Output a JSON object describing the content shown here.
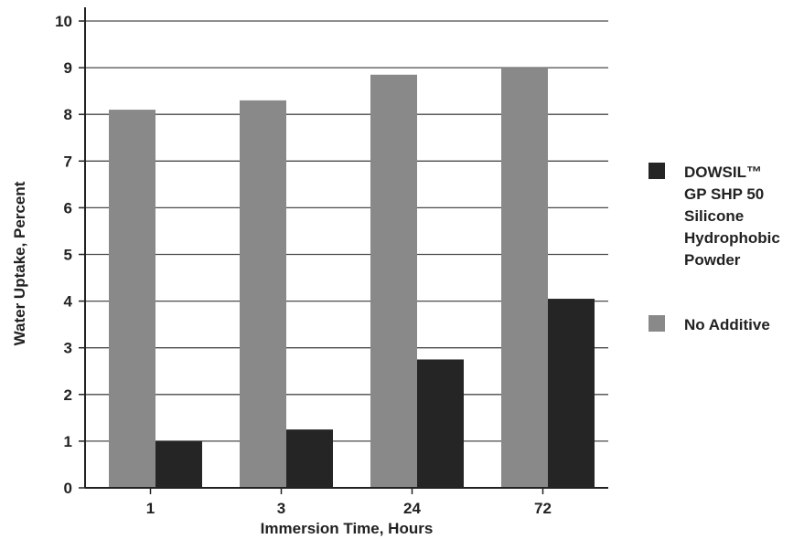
{
  "chart_data": {
    "type": "bar",
    "title": "",
    "xlabel": "Immersion Time, Hours",
    "ylabel": "Water Uptake, Percent",
    "categories": [
      "1",
      "3",
      "24",
      "72"
    ],
    "ylim": [
      0,
      10
    ],
    "yticks": [
      "0",
      "1",
      "2",
      "3",
      "4",
      "5",
      "6",
      "7",
      "8",
      "9",
      "10"
    ],
    "grid": true,
    "legend_position": "right",
    "series": [
      {
        "name": "No Additive",
        "color": "#898989",
        "values": [
          8.1,
          8.3,
          8.85,
          9.0
        ]
      },
      {
        "name": "DOWSIL™ GP SHP 50 Silicone Hydrophobic Powder",
        "color": "#252525",
        "values": [
          1.0,
          1.25,
          2.75,
          4.05
        ]
      }
    ],
    "legend": [
      {
        "series": 1,
        "lines": [
          "DOWSIL™",
          "GP SHP 50",
          "Silicone",
          "Hydrophobic",
          "Powder"
        ]
      },
      {
        "series": 0,
        "lines": [
          "No Additive"
        ]
      }
    ]
  }
}
